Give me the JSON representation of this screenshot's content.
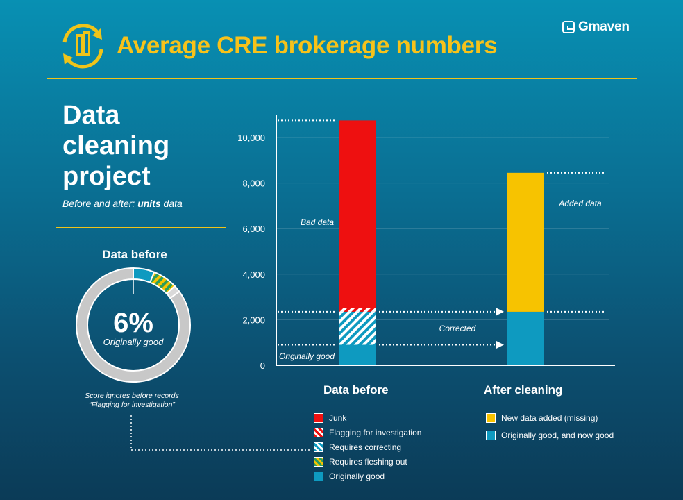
{
  "header": {
    "title": "Average CRE brokerage numbers",
    "brand": "Gmaven"
  },
  "panel": {
    "title": "Data cleaning project",
    "subtitle_prefix": "Before and after: ",
    "subtitle_bold": "units",
    "subtitle_suffix": " data"
  },
  "donut": {
    "title": "Data before",
    "center_value": "6%",
    "center_label": "Originally good",
    "note_line1": "Score ignores before records",
    "note_line2": "“Flagging for investigation”",
    "segments": [
      {
        "name": "Originally good",
        "value": 6,
        "color": "#0e9ac0",
        "pattern": "none"
      },
      {
        "name": "Requires fleshing out",
        "value": 7,
        "color": "#f0c419",
        "pattern": "hatch-green"
      },
      {
        "name": "Requires correcting",
        "value": 2,
        "color": "#d9d9d9",
        "pattern": "none"
      },
      {
        "name": "Remaining",
        "value": 85,
        "color": "#c8c8c8",
        "pattern": "none"
      }
    ]
  },
  "colors": {
    "junk": "#ee1010",
    "new_data": "#f7c300",
    "good": "#0e9ac0",
    "accent": "#f0c419"
  },
  "chart_data": {
    "type": "bar",
    "stacked": true,
    "categories": [
      "Data before",
      "After cleaning"
    ],
    "ylim": [
      0,
      11000
    ],
    "yticks": [
      0,
      2000,
      4000,
      6000,
      8000,
      10000
    ],
    "ytick_labels": [
      "0",
      "2,000",
      "4,000",
      "6,000",
      "8,000",
      "10,000"
    ],
    "grid": true,
    "series": [
      {
        "name": "Originally good",
        "values": [
          900,
          0
        ],
        "color": "#0e9ac0",
        "pattern": "solid"
      },
      {
        "name": "Requires correcting",
        "values": [
          1450,
          0
        ],
        "color": "#0e9ac0",
        "pattern": "hatch"
      },
      {
        "name": "Flagging for investigation",
        "values": [
          150,
          0
        ],
        "color": "#ee1010",
        "pattern": "hatch"
      },
      {
        "name": "Junk",
        "values": [
          8250,
          0
        ],
        "color": "#ee1010",
        "pattern": "solid"
      },
      {
        "name": "Originally good, and now good",
        "values": [
          0,
          2350
        ],
        "color": "#0e9ac0",
        "pattern": "solid"
      },
      {
        "name": "New data added (missing)",
        "values": [
          0,
          6100
        ],
        "color": "#f7c300",
        "pattern": "solid"
      }
    ],
    "annotations": {
      "bad_data": "Bad data",
      "added_data": "Added data",
      "corrected": "Corrected",
      "originally_good": "Originally good"
    }
  },
  "legend_before": [
    {
      "label": "Junk",
      "color": "#ee1010",
      "pattern": "solid"
    },
    {
      "label": "Flagging for investigation",
      "color": "#ee1010",
      "pattern": "hatch"
    },
    {
      "label": "Requires correcting",
      "color": "#0e9ac0",
      "pattern": "hatch"
    },
    {
      "label": "Requires fleshing out",
      "color": "#f7c300",
      "pattern": "hatch-green"
    },
    {
      "label": "Originally good",
      "color": "#0e9ac0",
      "pattern": "solid"
    }
  ],
  "legend_after": [
    {
      "label": "New data added (missing)",
      "color": "#f7c300",
      "pattern": "solid"
    },
    {
      "label": "Originally good, and now good",
      "color": "#0e9ac0",
      "pattern": "solid"
    }
  ]
}
